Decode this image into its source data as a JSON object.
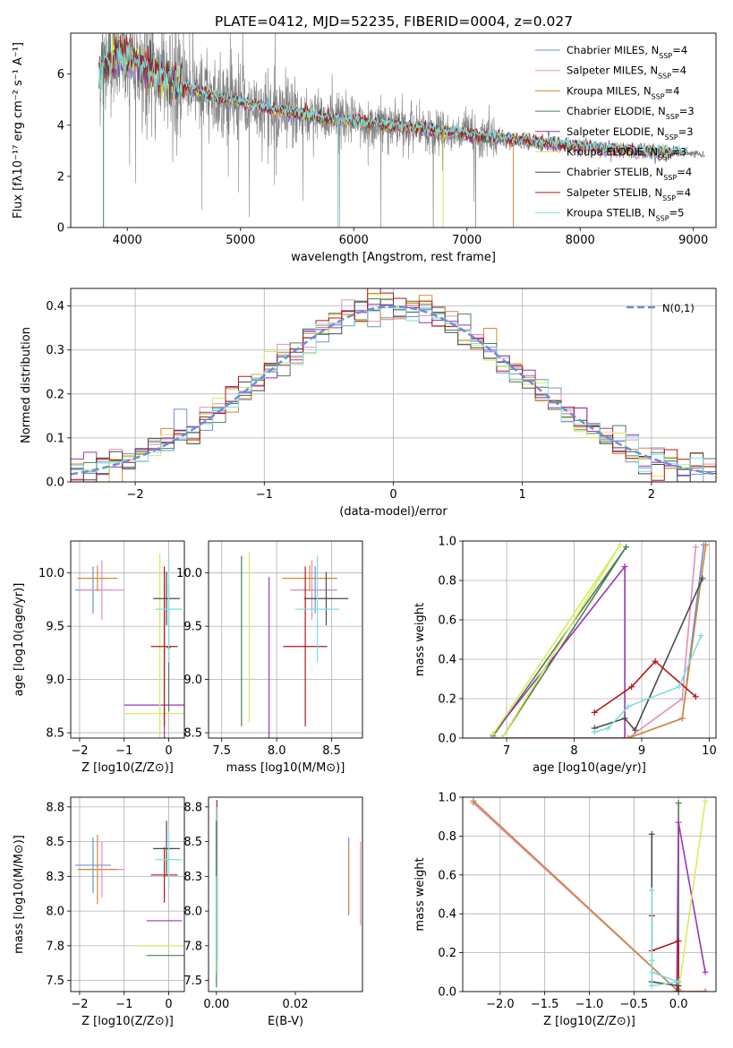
{
  "figure": {
    "title": "PLATE=0412, MJD=52235, FIBERID=0004, z=0.027"
  },
  "model_colors": {
    "Chabrier MILES": "#6f8fd9",
    "Salpeter MILES": "#e58fb8",
    "Kroupa MILES": "#d08a3a",
    "Chabrier ELODIE": "#4e8050",
    "Salpeter ELODIE": "#9b36b2",
    "Kroupa ELODIE": "#d6ec5a",
    "Chabrier STELIB": "#4a4a4a",
    "Salpeter STELIB": "#b01818",
    "Kroupa STELIB": "#7fdede",
    "data": "#808080",
    "normal_curve": "#6b8fd8"
  },
  "chart_data": [
    {
      "id": "spectrum",
      "type": "line",
      "xlabel": "wavelength [Angstrom, rest frame]",
      "ylabel": "Flux [fλ10⁻¹⁷ erg cm⁻² s⁻¹ A⁻¹]",
      "xlim": [
        3500,
        9200
      ],
      "ylim": [
        0,
        7.6
      ],
      "xticks": [
        4000,
        5000,
        6000,
        7000,
        8000,
        9000
      ],
      "yticks": [
        0,
        2,
        4,
        6
      ],
      "legend_position": "top-right",
      "data_range": [
        3750,
        9100
      ],
      "continuum": {
        "x": [
          3750,
          3850,
          3950,
          4050,
          4150,
          4300,
          4500,
          4700,
          4900,
          5100,
          5300,
          5500,
          5700,
          5900,
          6100,
          6300,
          6500,
          6700,
          6900,
          7100,
          7300,
          7500,
          7700,
          7900,
          8100,
          8300,
          8500,
          8700,
          8900,
          9100
        ],
        "y": [
          6.2,
          6.5,
          6.7,
          6.6,
          6.3,
          5.9,
          5.5,
          5.2,
          5.0,
          4.8,
          4.6,
          4.45,
          4.3,
          4.2,
          4.1,
          4.0,
          3.9,
          3.8,
          3.7,
          3.6,
          3.5,
          3.4,
          3.3,
          3.2,
          3.15,
          3.05,
          3.0,
          2.95,
          2.9,
          2.85
        ]
      },
      "series": [
        {
          "name": "Chabrier MILES, N$_{SSP}$=4",
          "label_base": "Chabrier MILES, N",
          "label_sub": "SSP",
          "label_tail": "=4"
        },
        {
          "name": "Salpeter MILES, N$_{SSP}$=4",
          "label_base": "Salpeter MILES, N",
          "label_sub": "SSP",
          "label_tail": "=4"
        },
        {
          "name": "Kroupa MILES, N$_{SSP}$=4",
          "label_base": "Kroupa MILES, N",
          "label_sub": "SSP",
          "label_tail": "=4"
        },
        {
          "name": "Chabrier ELODIE, N$_{SSP}$=3",
          "label_base": "Chabrier ELODIE, N",
          "label_sub": "SSP",
          "label_tail": "=3"
        },
        {
          "name": "Salpeter ELODIE, N$_{SSP}$=3",
          "label_base": "Salpeter ELODIE, N",
          "label_sub": "SSP",
          "label_tail": "=3"
        },
        {
          "name": "Kroupa ELODIE, N$_{SSP}$=3",
          "label_base": "Kroupa ELODIE, N",
          "label_sub": "SSP",
          "label_tail": "=3"
        },
        {
          "name": "Chabrier STELIB, N$_{SSP}$=4",
          "label_base": "Chabrier STELIB, N",
          "label_sub": "SSP",
          "label_tail": "=4"
        },
        {
          "name": "Salpeter STELIB, N$_{SSP}$=4",
          "label_base": "Salpeter STELIB, N",
          "label_sub": "SSP",
          "label_tail": "=4"
        },
        {
          "name": "Kroupa STELIB, N$_{SSP}$=5",
          "label_base": "Kroupa STELIB, N",
          "label_sub": "SSP",
          "label_tail": "=5"
        }
      ]
    },
    {
      "id": "residuals",
      "type": "histogram",
      "xlabel": "(data-model)/error",
      "ylabel": "Normed distribution",
      "xlim": [
        -2.5,
        2.5
      ],
      "ylim": [
        0,
        0.44
      ],
      "xticks": [
        -2,
        -1,
        0,
        1,
        2
      ],
      "yticks": [
        0.0,
        0.1,
        0.2,
        0.3,
        0.4
      ],
      "grid": true,
      "legend": "N(0,1)",
      "legend_position": "top-right",
      "bin_width": 0.1,
      "reference_curve": {
        "name": "N(0,1)",
        "mean": 0,
        "sigma": 1
      }
    },
    {
      "id": "age_vs_Z",
      "type": "errorbar",
      "xlabel": "Z [log10(Z/Z⊙)]",
      "ylabel": "age [log10(age/yr)]",
      "xlim": [
        -2.2,
        0.35
      ],
      "ylim": [
        8.45,
        10.3
      ],
      "xticks": [
        -2,
        -1,
        0
      ],
      "yticks": [
        8.5,
        9.0,
        9.5,
        10.0
      ],
      "grid": true,
      "points": [
        {
          "model": "Chabrier MILES",
          "x": -1.7,
          "xerr": 0.4,
          "y": 9.84,
          "yerr": 0.22
        },
        {
          "model": "Salpeter MILES",
          "x": -1.5,
          "xerr": 0.5,
          "y": 9.84,
          "yerr": 0.28
        },
        {
          "model": "Kroupa MILES",
          "x": -1.6,
          "xerr": 0.45,
          "y": 9.95,
          "yerr": 0.12
        },
        {
          "model": "Chabrier ELODIE",
          "x": 0.0,
          "xerr": 0.05,
          "y": 9.3,
          "yerr": 0.6
        },
        {
          "model": "Salpeter ELODIE",
          "x": -0.1,
          "xerr": 0.9,
          "y": 8.76,
          "yerr": 1.2
        },
        {
          "model": "Kroupa ELODIE",
          "x": -0.2,
          "xerr": 0.8,
          "y": 8.68,
          "yerr": 1.5
        },
        {
          "model": "Chabrier STELIB",
          "x": -0.05,
          "xerr": 0.3,
          "y": 9.76,
          "yerr": 0.25
        },
        {
          "model": "Salpeter STELIB",
          "x": -0.1,
          "xerr": 0.3,
          "y": 9.31,
          "yerr": 0.75
        },
        {
          "model": "Kroupa STELIB",
          "x": 0.0,
          "xerr": 0.3,
          "y": 9.66,
          "yerr": 0.5
        }
      ]
    },
    {
      "id": "age_vs_mass",
      "type": "errorbar",
      "xlabel": "mass [log10(M/M⊙)]",
      "ylabel": "",
      "xlim": [
        7.38,
        8.78
      ],
      "ylim": [
        8.45,
        10.3
      ],
      "xticks": [
        7.5,
        8.0,
        8.5
      ],
      "yticks": [
        8.5,
        9.0,
        9.5,
        10.0
      ],
      "grid": true,
      "points": [
        {
          "model": "Chabrier MILES",
          "x": 8.35,
          "xerr": 0.2,
          "y": 9.84,
          "yerr": 0.22
        },
        {
          "model": "Salpeter MILES",
          "x": 8.32,
          "xerr": 0.2,
          "y": 9.84,
          "yerr": 0.28
        },
        {
          "model": "Kroupa MILES",
          "x": 8.3,
          "xerr": 0.25,
          "y": 9.95,
          "yerr": 0.12
        },
        {
          "model": "Chabrier ELODIE",
          "x": 7.68,
          "xerr": 0.0,
          "y": 9.36,
          "yerr": 0.8
        },
        {
          "model": "Salpeter ELODIE",
          "x": 7.93,
          "xerr": 0.0,
          "y": 8.76,
          "yerr": 1.2
        },
        {
          "model": "Kroupa ELODIE",
          "x": 7.75,
          "xerr": 0.0,
          "y": 9.4,
          "yerr": 0.8
        },
        {
          "model": "Chabrier STELIB",
          "x": 8.45,
          "xerr": 0.2,
          "y": 9.76,
          "yerr": 0.25
        },
        {
          "model": "Salpeter STELIB",
          "x": 8.26,
          "xerr": 0.2,
          "y": 9.31,
          "yerr": 0.75
        },
        {
          "model": "Kroupa STELIB",
          "x": 8.37,
          "xerr": 0.2,
          "y": 9.66,
          "yerr": 0.5
        }
      ]
    },
    {
      "id": "weight_vs_age",
      "type": "line",
      "xlabel": "age [log10(age/yr)]",
      "ylabel": "mass weight",
      "xlim": [
        6.35,
        10.1
      ],
      "ylim": [
        0,
        1.0
      ],
      "xticks": [
        7,
        8,
        9,
        10
      ],
      "yticks": [
        0.0,
        0.2,
        0.4,
        0.6,
        0.8,
        1.0
      ],
      "grid": true,
      "series": [
        {
          "model": "Chabrier MILES",
          "x": [
            6.8,
            8.8,
            9.6,
            9.92
          ],
          "y": [
            0.0,
            0.0,
            0.1,
            0.98
          ]
        },
        {
          "model": "Salpeter MILES",
          "x": [
            6.8,
            8.8,
            9.6,
            9.8
          ],
          "y": [
            0.0,
            0.0,
            0.2,
            0.97
          ]
        },
        {
          "model": "Kroupa MILES",
          "x": [
            6.8,
            8.8,
            9.6,
            9.95
          ],
          "y": [
            0.0,
            0.0,
            0.1,
            0.98
          ]
        },
        {
          "model": "Chabrier ELODIE",
          "x": [
            6.8,
            8.77,
            6.93
          ],
          "y": [
            0.01,
            0.97,
            0.0
          ]
        },
        {
          "model": "Salpeter ELODIE",
          "x": [
            6.8,
            8.75,
            8.75
          ],
          "y": [
            0.02,
            0.87,
            0.0
          ]
        },
        {
          "model": "Kroupa ELODIE",
          "x": [
            6.8,
            8.68,
            6.93
          ],
          "y": [
            0.02,
            0.98,
            0.0
          ]
        },
        {
          "model": "Chabrier STELIB",
          "x": [
            8.3,
            8.75,
            8.9,
            9.9
          ],
          "y": [
            0.05,
            0.1,
            0.04,
            0.81
          ]
        },
        {
          "model": "Salpeter STELIB",
          "x": [
            8.3,
            8.85,
            9.2,
            9.8
          ],
          "y": [
            0.13,
            0.26,
            0.39,
            0.21
          ]
        },
        {
          "model": "Kroupa STELIB",
          "x": [
            8.3,
            8.5,
            8.8,
            9.55,
            9.88
          ],
          "y": [
            0.03,
            0.05,
            0.16,
            0.26,
            0.52
          ]
        }
      ]
    },
    {
      "id": "mass_vs_Z",
      "type": "errorbar",
      "xlabel": "Z [log10(Z/Z⊙)]",
      "ylabel": "mass [log10(M/M⊙)]",
      "xlim": [
        -2.2,
        0.35
      ],
      "ylim": [
        7.42,
        8.82
      ],
      "xticks": [
        -2,
        -1,
        0
      ],
      "yticks": [
        7.5,
        7.75,
        8.0,
        8.25,
        8.5,
        8.75
      ],
      "grid": true,
      "points": [
        {
          "model": "Chabrier MILES",
          "x": -1.7,
          "xerr": 0.4,
          "y": 8.33,
          "yerr": 0.2
        },
        {
          "model": "Salpeter MILES",
          "x": -1.5,
          "xerr": 0.5,
          "y": 8.3,
          "yerr": 0.2
        },
        {
          "model": "Kroupa MILES",
          "x": -1.6,
          "xerr": 0.45,
          "y": 8.3,
          "yerr": 0.25
        },
        {
          "model": "Chabrier ELODIE",
          "x": 0.0,
          "xerr": 0.5,
          "y": 7.68,
          "yerr": 0.0
        },
        {
          "model": "Salpeter ELODIE",
          "x": -0.1,
          "xerr": 0.4,
          "y": 7.93,
          "yerr": 0.0
        },
        {
          "model": "Kroupa ELODIE",
          "x": -0.2,
          "xerr": 0.5,
          "y": 7.75,
          "yerr": 0.0
        },
        {
          "model": "Chabrier STELIB",
          "x": -0.05,
          "xerr": 0.3,
          "y": 8.45,
          "yerr": 0.2
        },
        {
          "model": "Salpeter STELIB",
          "x": -0.1,
          "xerr": 0.3,
          "y": 8.26,
          "yerr": 0.2
        },
        {
          "model": "Kroupa STELIB",
          "x": 0.0,
          "xerr": 0.3,
          "y": 8.37,
          "yerr": 0.2
        }
      ]
    },
    {
      "id": "mass_vs_ebv",
      "type": "errorbar",
      "xlabel": "E(B-V)",
      "ylabel": "",
      "xlim": [
        -0.002,
        0.037
      ],
      "ylim": [
        7.42,
        8.82
      ],
      "xticks": [
        0.0,
        0.02
      ],
      "yticks": [
        7.5,
        7.75,
        8.0,
        8.25,
        8.5,
        8.75
      ],
      "grid": false,
      "points": [
        {
          "model": "Chabrier MILES",
          "x": 0.0335,
          "y": 8.25,
          "yerr": 0.28
        },
        {
          "model": "Salpeter MILES",
          "x": 0.0365,
          "y": 8.2,
          "yerr": 0.3
        },
        {
          "model": "Kroupa MILES",
          "x": 0.0335,
          "y": 8.22,
          "yerr": 0.25
        },
        {
          "model": "Chabrier ELODIE",
          "x": 0.0,
          "y": 8.05,
          "yerr": 0.6
        },
        {
          "model": "Salpeter ELODIE",
          "x": 0.0002,
          "y": 8.15,
          "yerr": 0.5
        },
        {
          "model": "Kroupa ELODIE",
          "x": 0.0001,
          "y": 8.1,
          "yerr": 0.55
        },
        {
          "model": "Chabrier STELIB",
          "x": 0.0,
          "y": 8.45,
          "yerr": 0.2
        },
        {
          "model": "Salpeter STELIB",
          "x": 0.0001,
          "y": 8.6,
          "yerr": 0.2
        },
        {
          "model": "Kroupa STELIB",
          "x": 0.0002,
          "y": 8.15,
          "yerr": 0.6
        }
      ]
    },
    {
      "id": "weight_vs_Z",
      "type": "line",
      "xlabel": "Z [log10(Z/Z⊙)]",
      "ylabel": "mass weight",
      "xlim": [
        -2.42,
        0.42
      ],
      "ylim": [
        0,
        1.0
      ],
      "xticks": [
        -2.0,
        -1.5,
        -1.0,
        -0.5,
        0.0
      ],
      "yticks": [
        0.0,
        0.2,
        0.4,
        0.6,
        0.8,
        1.0
      ],
      "grid": true,
      "series": [
        {
          "model": "Chabrier MILES",
          "x": [
            -2.3,
            0.0,
            0.3
          ],
          "y": [
            0.98,
            0.0,
            0.0
          ]
        },
        {
          "model": "Salpeter MILES",
          "x": [
            -2.3,
            0.0,
            0.3
          ],
          "y": [
            0.97,
            0.0,
            0.0
          ]
        },
        {
          "model": "Kroupa MILES",
          "x": [
            -2.3,
            0.0,
            0.3
          ],
          "y": [
            0.98,
            0.0,
            0.0
          ]
        },
        {
          "model": "Chabrier ELODIE",
          "x": [
            0.0,
            0.0,
            -0.02
          ],
          "y": [
            0.97,
            0.01,
            0.0
          ]
        },
        {
          "model": "Salpeter ELODIE",
          "x": [
            0.3,
            0.0,
            -0.02
          ],
          "y": [
            0.1,
            0.87,
            0.0
          ]
        },
        {
          "model": "Kroupa ELODIE",
          "x": [
            0.3,
            0.0,
            -0.02
          ],
          "y": [
            0.98,
            0.0,
            0.0
          ]
        },
        {
          "model": "Chabrier STELIB",
          "x": [
            -0.3,
            -0.3,
            0.0,
            -0.02
          ],
          "y": [
            0.81,
            0.05,
            0.03,
            0.0
          ]
        },
        {
          "model": "Salpeter STELIB",
          "x": [
            -0.3,
            -0.3,
            0.0,
            0.0
          ],
          "y": [
            0.39,
            0.21,
            0.26,
            0.0
          ]
        },
        {
          "model": "Kroupa STELIB",
          "x": [
            -0.3,
            -0.3,
            0.0,
            -0.3,
            -0.3
          ],
          "y": [
            0.52,
            0.03,
            0.05,
            0.1,
            0.16
          ]
        }
      ]
    }
  ]
}
